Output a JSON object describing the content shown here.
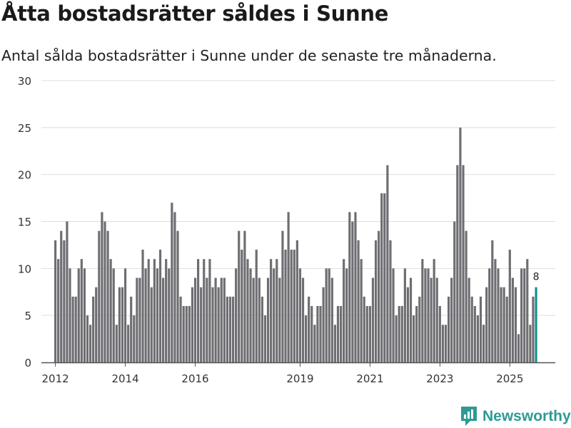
{
  "header": {
    "title": "Åtta bostadsrätter såldes i Sunne",
    "subtitle": "Antal sålda bostadsrätter i Sunne under de senaste tre månaderna."
  },
  "brand": {
    "name": "Newsworthy",
    "icon": "newsworthy-logo-icon",
    "color": "#2e9a94"
  },
  "colors": {
    "bar": "#6e6d72",
    "highlight": "#10918f",
    "grid": "#dddddd",
    "axis": "#555555"
  },
  "chart_data": {
    "type": "bar",
    "title": "Åtta bostadsrätter såldes i Sunne",
    "subtitle": "Antal sålda bostadsrätter i Sunne under de senaste tre månaderna.",
    "xlabel": "",
    "ylabel": "",
    "ylim": [
      0,
      30
    ],
    "yticks": [
      0,
      5,
      10,
      15,
      20,
      25,
      30
    ],
    "x_start": 2012.0,
    "x_step": 0.08333,
    "xlim": [
      2011.6,
      2026.3
    ],
    "xticks": [
      2012,
      2014,
      2016,
      2019,
      2021,
      2023,
      2025
    ],
    "values": [
      13,
      11,
      14,
      13,
      15,
      10,
      7,
      7,
      10,
      11,
      10,
      5,
      4,
      7,
      8,
      14,
      16,
      15,
      14,
      11,
      10,
      4,
      8,
      8,
      10,
      4,
      7,
      5,
      9,
      9,
      12,
      10,
      11,
      8,
      11,
      10,
      12,
      9,
      11,
      10,
      17,
      16,
      14,
      7,
      6,
      6,
      6,
      8,
      9,
      11,
      8,
      11,
      9,
      11,
      8,
      9,
      8,
      9,
      9,
      7,
      7,
      7,
      10,
      14,
      12,
      14,
      11,
      10,
      9,
      12,
      9,
      7,
      5,
      9,
      11,
      10,
      11,
      9,
      14,
      12,
      16,
      12,
      12,
      13,
      10,
      9,
      5,
      7,
      6,
      4,
      6,
      6,
      8,
      10,
      10,
      9,
      4,
      6,
      6,
      11,
      10,
      16,
      15,
      16,
      13,
      11,
      7,
      6,
      6,
      9,
      13,
      14,
      18,
      18,
      21,
      13,
      10,
      5,
      6,
      6,
      10,
      8,
      9,
      5,
      6,
      7,
      11,
      10,
      10,
      9,
      11,
      9,
      6,
      4,
      4,
      7,
      9,
      15,
      21,
      25,
      21,
      14,
      9,
      7,
      6,
      5,
      7,
      4,
      8,
      10,
      13,
      11,
      10,
      8,
      8,
      7,
      12,
      9,
      8,
      3,
      10,
      10,
      11,
      4,
      7,
      8
    ],
    "highlight_last": true,
    "last_label": "8"
  }
}
